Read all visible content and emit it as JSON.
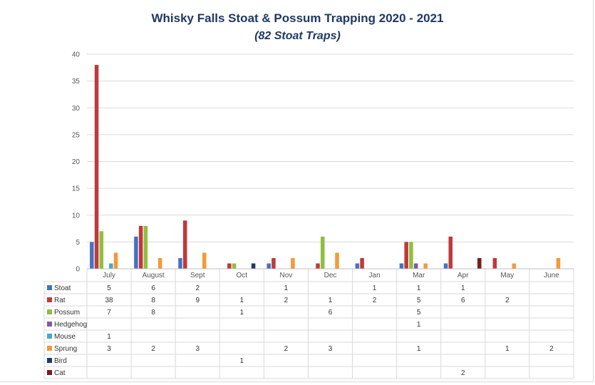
{
  "chart_data": {
    "type": "bar",
    "title": "Whisky Falls Stoat & Possum Trapping 2020 - 2021",
    "subtitle": "(82 Stoat Traps)",
    "xlabel": "",
    "ylabel": "",
    "ylim": [
      0,
      40
    ],
    "yticks": [
      0,
      5,
      10,
      15,
      20,
      25,
      30,
      35,
      40
    ],
    "grid": true,
    "legend": "data-table-rows",
    "categories": [
      "July",
      "August",
      "Sept",
      "Oct",
      "Nov",
      "Dec",
      "Jan",
      "Mar",
      "Apr",
      "May",
      "June"
    ],
    "series": [
      {
        "name": "Stoat",
        "color": "#4472c4",
        "values": [
          5,
          6,
          2,
          null,
          1,
          null,
          1,
          1,
          1,
          null,
          null
        ]
      },
      {
        "name": "Rat",
        "color": "#c0393b",
        "values": [
          38,
          8,
          9,
          1,
          2,
          1,
          2,
          5,
          6,
          2,
          null
        ]
      },
      {
        "name": "Possum",
        "color": "#8fbf3f",
        "values": [
          7,
          8,
          null,
          1,
          null,
          6,
          null,
          5,
          null,
          null,
          null
        ]
      },
      {
        "name": "Hedgehog",
        "color": "#7a5ca8",
        "values": [
          null,
          null,
          null,
          null,
          null,
          null,
          null,
          1,
          null,
          null,
          null
        ]
      },
      {
        "name": "Mouse",
        "color": "#45a9c9",
        "values": [
          1,
          null,
          null,
          null,
          null,
          null,
          null,
          null,
          null,
          null,
          null
        ]
      },
      {
        "name": "Sprung",
        "color": "#f39a3a",
        "values": [
          3,
          2,
          3,
          null,
          2,
          3,
          null,
          1,
          null,
          1,
          2
        ]
      },
      {
        "name": "Bird",
        "color": "#1f3a5c",
        "values": [
          null,
          null,
          null,
          1,
          null,
          null,
          null,
          null,
          null,
          null,
          null
        ]
      },
      {
        "name": "Cat",
        "color": "#7b1c1c",
        "values": [
          null,
          null,
          null,
          null,
          null,
          null,
          null,
          null,
          2,
          null,
          null
        ]
      }
    ]
  }
}
